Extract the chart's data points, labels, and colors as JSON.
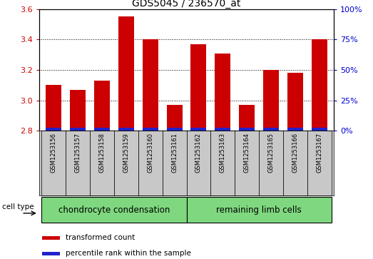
{
  "title": "GDS5045 / 236570_at",
  "samples": [
    "GSM1253156",
    "GSM1253157",
    "GSM1253158",
    "GSM1253159",
    "GSM1253160",
    "GSM1253161",
    "GSM1253162",
    "GSM1253163",
    "GSM1253164",
    "GSM1253165",
    "GSM1253166",
    "GSM1253167"
  ],
  "red_values": [
    3.1,
    3.07,
    3.13,
    3.55,
    3.4,
    2.97,
    3.37,
    3.31,
    2.97,
    3.2,
    3.18,
    3.4
  ],
  "blue_heights": [
    0.022,
    0.022,
    0.022,
    0.022,
    0.022,
    0.022,
    0.022,
    0.022,
    0.022,
    0.022,
    0.022,
    0.022
  ],
  "ymin": 2.8,
  "ymax": 3.6,
  "yticks": [
    2.8,
    3.0,
    3.2,
    3.4,
    3.6
  ],
  "right_yticks_pct": [
    0,
    25,
    50,
    75,
    100
  ],
  "right_ytick_labels": [
    "0%",
    "25%",
    "50%",
    "75%",
    "100%"
  ],
  "groups": [
    {
      "label": "chondrocyte condensation",
      "start": 0,
      "end": 5,
      "color": "#7FD87F"
    },
    {
      "label": "remaining limb cells",
      "start": 6,
      "end": 11,
      "color": "#7FD87F"
    }
  ],
  "cell_type_label": "cell type",
  "bar_width": 0.65,
  "red_color": "#CC0000",
  "blue_color": "#2222CC",
  "sample_bg": "#C8C8C8",
  "plot_bg": "#FFFFFF",
  "left_tick_color": "#CC0000",
  "right_tick_color": "#0000CC",
  "legend_red": "transformed count",
  "legend_blue": "percentile rank within the sample",
  "grid_color": "#000000",
  "title_fontsize": 10,
  "tick_fontsize": 8,
  "sample_fontsize": 6,
  "group_fontsize": 8.5,
  "legend_fontsize": 7.5
}
